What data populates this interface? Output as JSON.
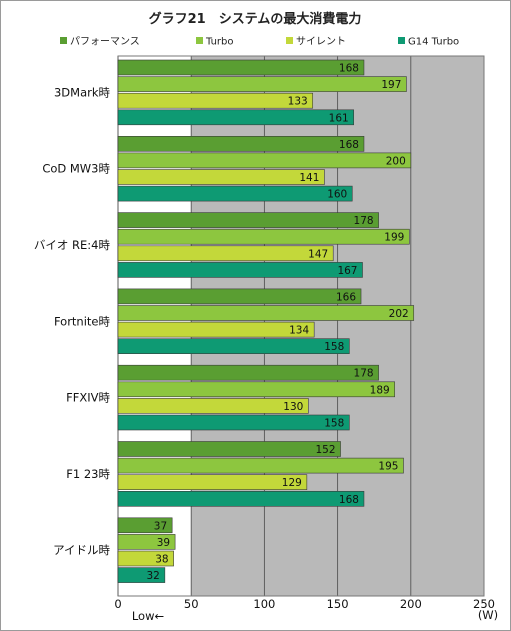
{
  "chart_data": {
    "type": "bar",
    "orientation": "horizontal",
    "title": "グラフ21　システムの最大消費電力",
    "unit": "(W)",
    "low_label": "Low←",
    "categories": [
      "3DMark時",
      "CoD MW3時",
      "バイオ RE:4時",
      "Fortnite時",
      "FFXIV時",
      "F1 23時",
      "アイドル時"
    ],
    "series": [
      {
        "name": "パフォーマンス",
        "color": "#5a9e32",
        "values": [
          168,
          168,
          178,
          166,
          178,
          152,
          37
        ]
      },
      {
        "name": "Turbo",
        "color": "#8dc63f",
        "values": [
          197,
          200,
          199,
          202,
          189,
          195,
          39
        ]
      },
      {
        "name": "サイレント",
        "color": "#c3d83a",
        "values": [
          133,
          141,
          147,
          134,
          130,
          129,
          38
        ]
      },
      {
        "name": "G14 Turbo",
        "color": "#0e9a73",
        "values": [
          161,
          160,
          167,
          158,
          158,
          168,
          32
        ]
      }
    ],
    "xlim": [
      0,
      250
    ],
    "xticks": [
      0,
      50,
      100,
      150,
      200,
      250
    ],
    "grid": true,
    "legend_position": "top"
  }
}
